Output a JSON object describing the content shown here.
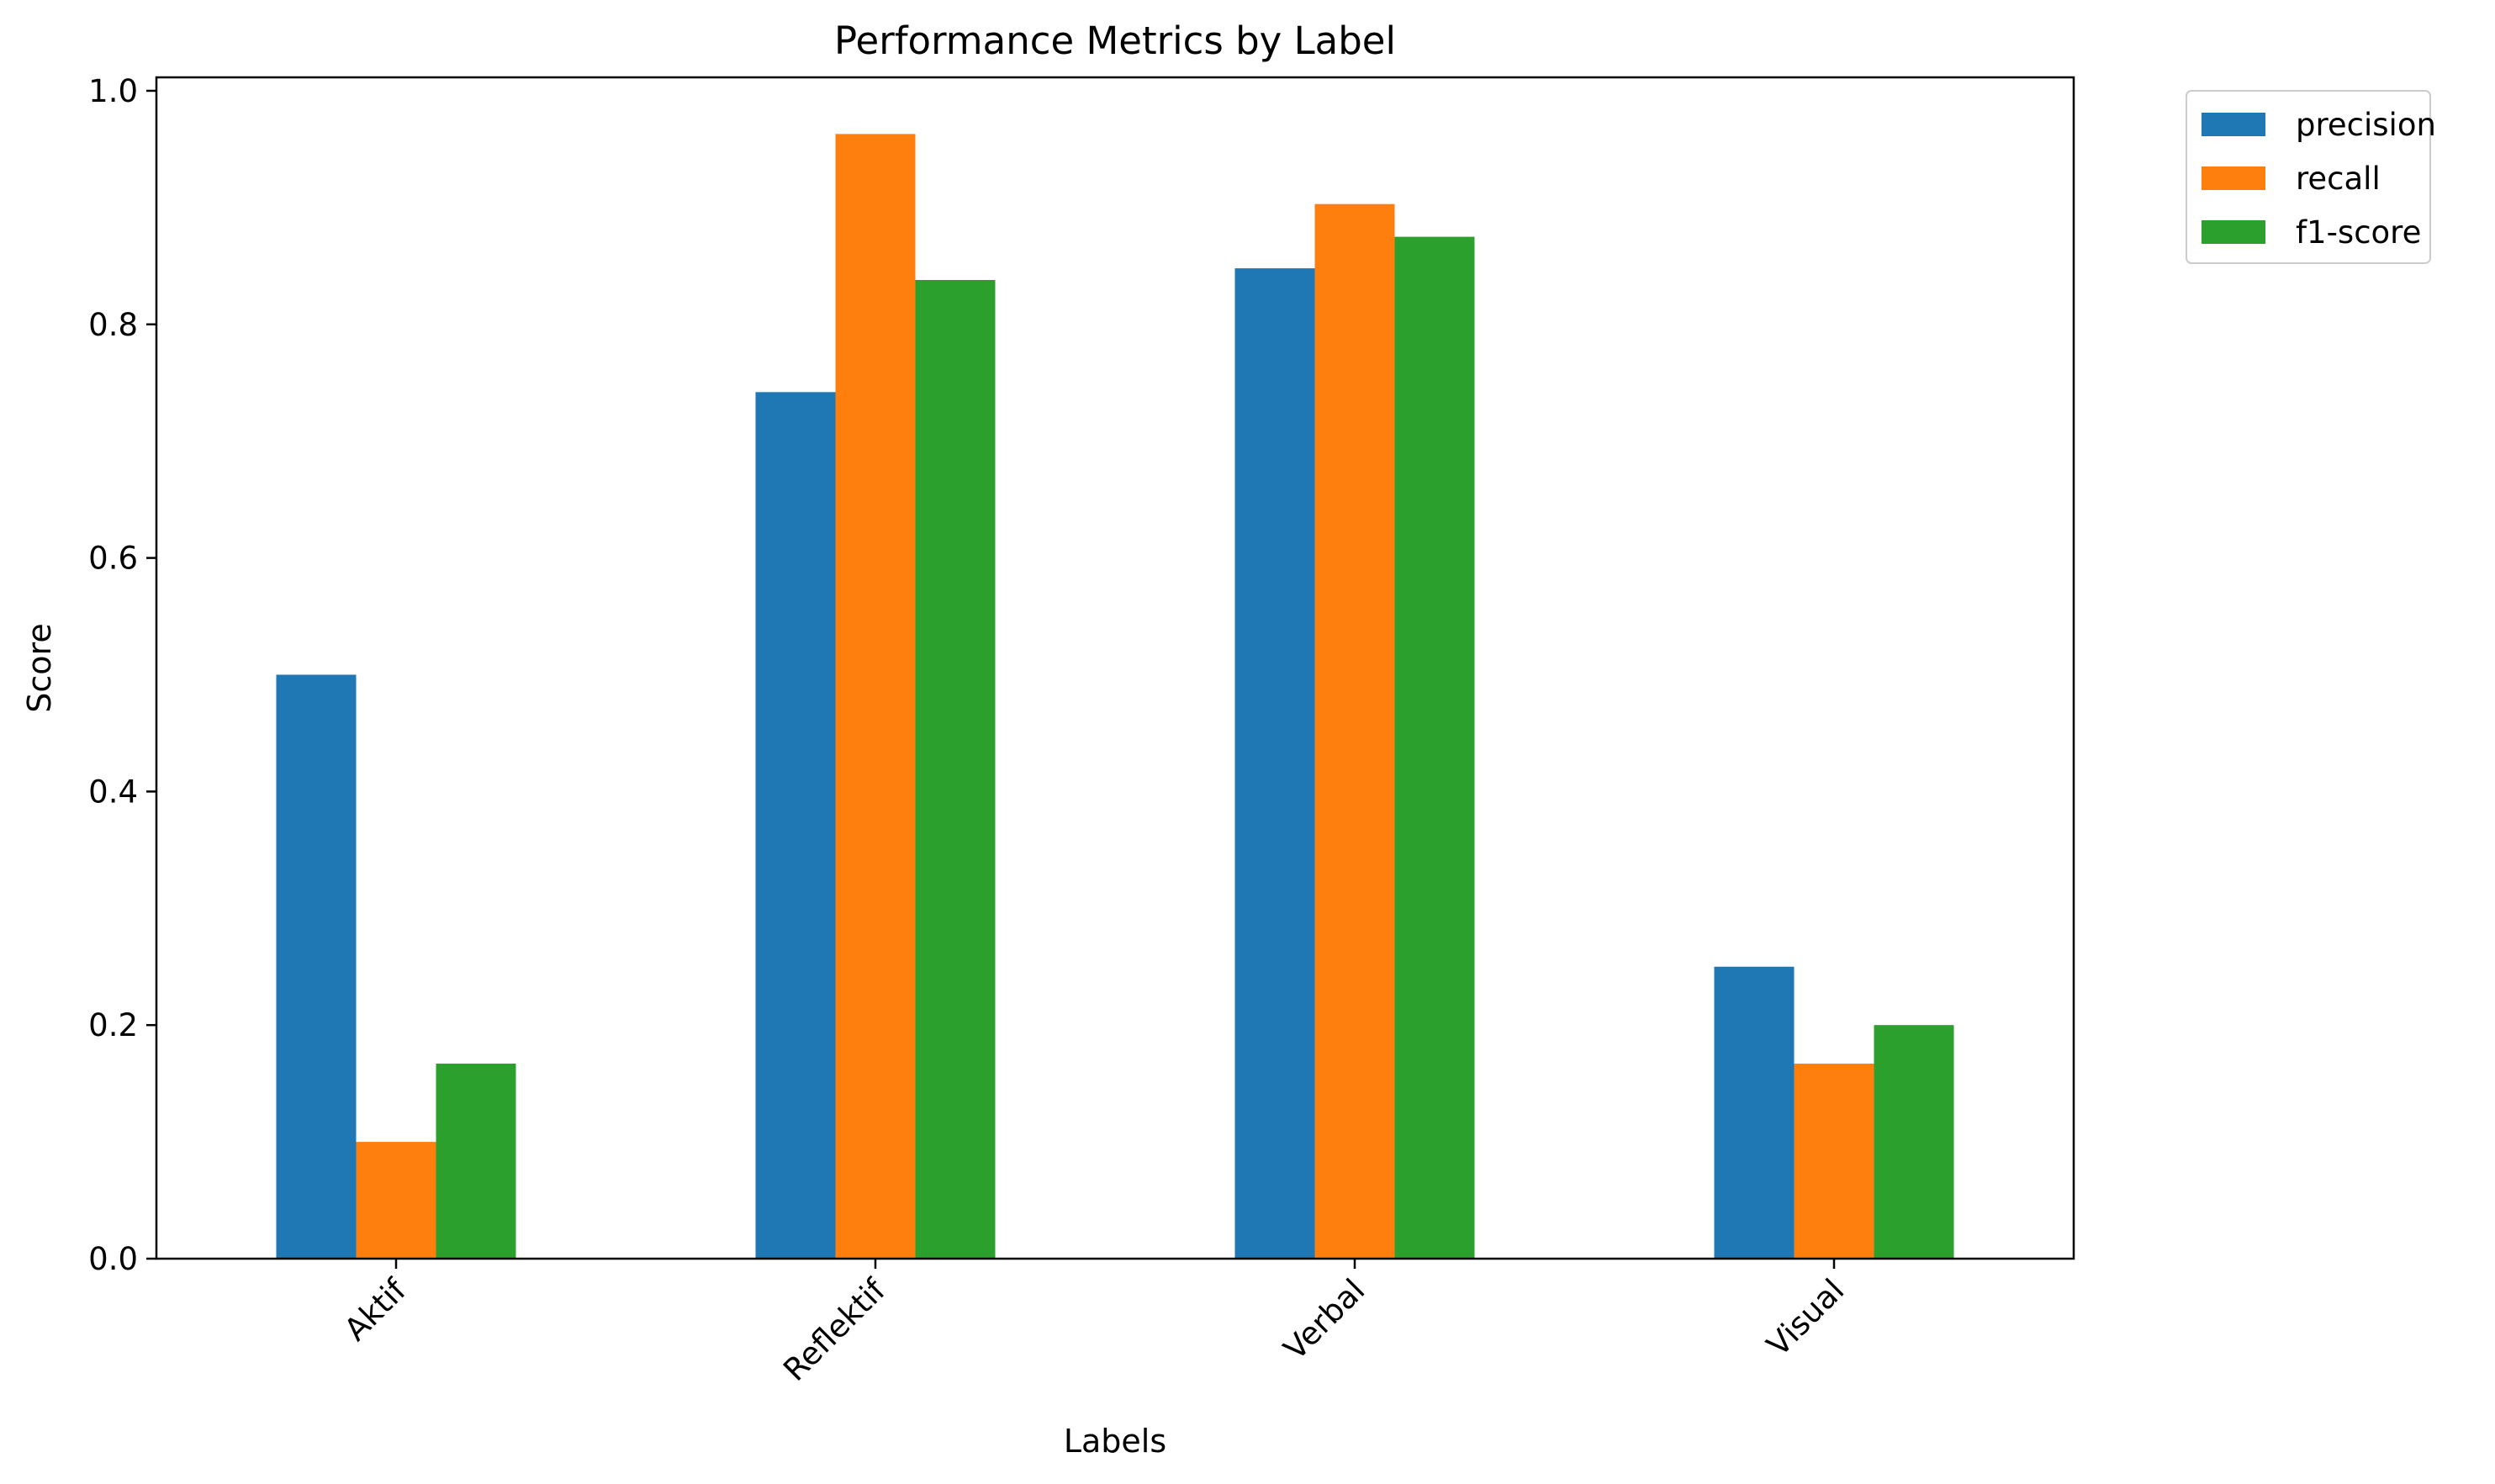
{
  "chart_data": {
    "type": "bar",
    "title": "Performance Metrics by Label",
    "xlabel": "Labels",
    "ylabel": "Score",
    "categories": [
      "Aktif",
      "Reflektif",
      "Verbal",
      "Visual"
    ],
    "series": [
      {
        "name": "precision",
        "color": "#1f77b4",
        "values": [
          0.5,
          0.742,
          0.848,
          0.25
        ]
      },
      {
        "name": "recall",
        "color": "#ff7f0e",
        "values": [
          0.1,
          0.963,
          0.903,
          0.167
        ]
      },
      {
        "name": "f1-score",
        "color": "#2ca02c",
        "values": [
          0.167,
          0.838,
          0.875,
          0.2
        ]
      }
    ],
    "ylim": [
      0,
      1.0
    ],
    "yticks": [
      0.0,
      0.2,
      0.4,
      0.6,
      0.8,
      1.0
    ],
    "ytick_labels": [
      "0.0",
      "0.2",
      "0.4",
      "0.6",
      "0.8",
      "1.0"
    ],
    "xtick_rotation_deg": 45,
    "grid": false,
    "legend_position": "outside top-right"
  }
}
